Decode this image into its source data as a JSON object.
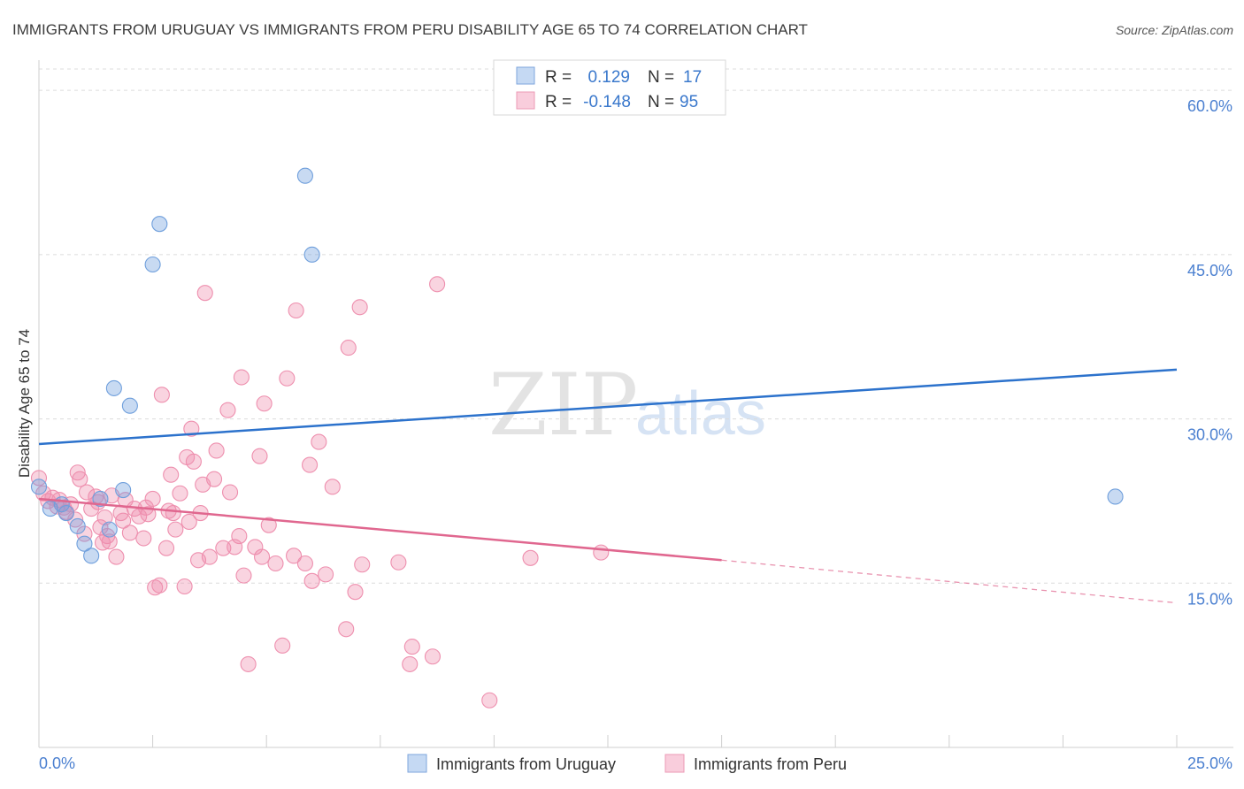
{
  "title": "IMMIGRANTS FROM URUGUAY VS IMMIGRANTS FROM PERU DISABILITY AGE 65 TO 74 CORRELATION CHART",
  "source": "Source: ZipAtlas.com",
  "watermark": {
    "zip": "ZIP",
    "atlas": "atlas"
  },
  "legend": {
    "uruguay": {
      "r_label": "R =",
      "r_value": "0.129",
      "n_label": "N =",
      "n_value": "17"
    },
    "peru": {
      "r_label": "R =",
      "r_value": "-0.148",
      "n_label": "N =",
      "n_value": "95"
    }
  },
  "bottom_legend": {
    "uruguay": "Immigrants from Uruguay",
    "peru": "Immigrants from Peru"
  },
  "chart_data": {
    "type": "scatter",
    "title": "IMMIGRANTS FROM URUGUAY VS IMMIGRANTS FROM PERU DISABILITY AGE 65 TO 74 CORRELATION CHART",
    "xlabel": "",
    "ylabel": "Disability Age 65 to 74",
    "xlim": [
      0,
      25
    ],
    "ylim": [
      0,
      63
    ],
    "x_tick_labels": [
      "0.0%",
      "25.0%"
    ],
    "y_ticks": [
      15,
      30,
      45,
      60
    ],
    "y_tick_labels": [
      "15.0%",
      "30.0%",
      "45.0%",
      "60.0%"
    ],
    "colors": {
      "uruguay": "#6f9fdc",
      "peru": "#ee8fae",
      "uruguay_line": "#2c72cc",
      "peru_line": "#e0678f"
    },
    "series": [
      {
        "name": "Immigrants from Uruguay",
        "points": [
          [
            0.0,
            23.8
          ],
          [
            0.25,
            21.8
          ],
          [
            0.5,
            22.2
          ],
          [
            0.6,
            21.4
          ],
          [
            0.85,
            20.2
          ],
          [
            1.0,
            18.6
          ],
          [
            1.15,
            17.5
          ],
          [
            1.35,
            22.7
          ],
          [
            1.55,
            19.9
          ],
          [
            1.65,
            32.8
          ],
          [
            1.85,
            23.5
          ],
          [
            2.0,
            31.2
          ],
          [
            2.5,
            44.1
          ],
          [
            2.65,
            47.8
          ],
          [
            5.85,
            52.2
          ],
          [
            6.0,
            45.0
          ],
          [
            23.65,
            22.9
          ]
        ],
        "trend": {
          "x": [
            0,
            25
          ],
          "y": [
            27.7,
            34.5
          ],
          "style": "solid"
        }
      },
      {
        "name": "Immigrants from Peru",
        "points": [
          [
            0.0,
            24.6
          ],
          [
            0.1,
            23.2
          ],
          [
            0.2,
            22.5
          ],
          [
            0.3,
            22.8
          ],
          [
            0.4,
            22.0
          ],
          [
            0.45,
            22.6
          ],
          [
            0.55,
            21.9
          ],
          [
            0.6,
            21.5
          ],
          [
            0.7,
            22.2
          ],
          [
            0.8,
            20.8
          ],
          [
            0.85,
            25.1
          ],
          [
            0.9,
            24.5
          ],
          [
            1.0,
            19.5
          ],
          [
            1.05,
            23.3
          ],
          [
            1.15,
            21.8
          ],
          [
            1.25,
            22.9
          ],
          [
            1.3,
            22.4
          ],
          [
            1.35,
            20.1
          ],
          [
            1.4,
            18.7
          ],
          [
            1.45,
            21.0
          ],
          [
            1.5,
            19.3
          ],
          [
            1.55,
            18.8
          ],
          [
            1.6,
            23.0
          ],
          [
            1.7,
            17.4
          ],
          [
            1.8,
            21.4
          ],
          [
            1.85,
            20.7
          ],
          [
            1.9,
            22.6
          ],
          [
            2.0,
            19.6
          ],
          [
            2.1,
            21.8
          ],
          [
            2.2,
            21.1
          ],
          [
            2.3,
            19.1
          ],
          [
            2.35,
            21.9
          ],
          [
            2.4,
            21.3
          ],
          [
            2.5,
            22.7
          ],
          [
            2.55,
            14.6
          ],
          [
            2.65,
            14.8
          ],
          [
            2.7,
            32.2
          ],
          [
            2.8,
            18.2
          ],
          [
            2.85,
            21.6
          ],
          [
            2.9,
            24.9
          ],
          [
            2.95,
            21.4
          ],
          [
            3.0,
            19.9
          ],
          [
            3.1,
            23.2
          ],
          [
            3.2,
            14.7
          ],
          [
            3.25,
            26.5
          ],
          [
            3.3,
            20.6
          ],
          [
            3.35,
            29.1
          ],
          [
            3.4,
            26.1
          ],
          [
            3.5,
            17.1
          ],
          [
            3.55,
            21.4
          ],
          [
            3.6,
            24.0
          ],
          [
            3.65,
            41.5
          ],
          [
            3.75,
            17.4
          ],
          [
            3.85,
            24.5
          ],
          [
            3.9,
            27.1
          ],
          [
            4.05,
            18.2
          ],
          [
            4.15,
            30.8
          ],
          [
            4.2,
            23.3
          ],
          [
            4.3,
            18.3
          ],
          [
            4.4,
            19.3
          ],
          [
            4.45,
            33.8
          ],
          [
            4.5,
            15.7
          ],
          [
            4.6,
            7.6
          ],
          [
            4.75,
            18.3
          ],
          [
            4.85,
            26.6
          ],
          [
            4.9,
            17.4
          ],
          [
            4.95,
            31.4
          ],
          [
            5.05,
            20.3
          ],
          [
            5.2,
            16.8
          ],
          [
            5.35,
            9.3
          ],
          [
            5.45,
            33.7
          ],
          [
            5.6,
            17.5
          ],
          [
            5.65,
            39.9
          ],
          [
            5.85,
            16.8
          ],
          [
            5.95,
            25.8
          ],
          [
            6.0,
            15.2
          ],
          [
            6.15,
            27.9
          ],
          [
            6.3,
            15.8
          ],
          [
            6.45,
            23.8
          ],
          [
            6.75,
            10.8
          ],
          [
            6.8,
            36.5
          ],
          [
            6.95,
            14.2
          ],
          [
            7.05,
            40.2
          ],
          [
            7.1,
            16.7
          ],
          [
            7.9,
            16.9
          ],
          [
            8.15,
            7.6
          ],
          [
            8.2,
            9.2
          ],
          [
            8.65,
            8.3
          ],
          [
            8.75,
            42.3
          ],
          [
            9.9,
            4.3
          ],
          [
            10.8,
            17.3
          ],
          [
            12.35,
            17.8
          ]
        ],
        "trend": {
          "x": [
            0,
            15
          ],
          "y": [
            22.7,
            17.1
          ],
          "style": "solid",
          "dashed_extension": {
            "x": [
              15,
              25
            ],
            "y": [
              17.1,
              13.2
            ]
          }
        }
      }
    ]
  }
}
